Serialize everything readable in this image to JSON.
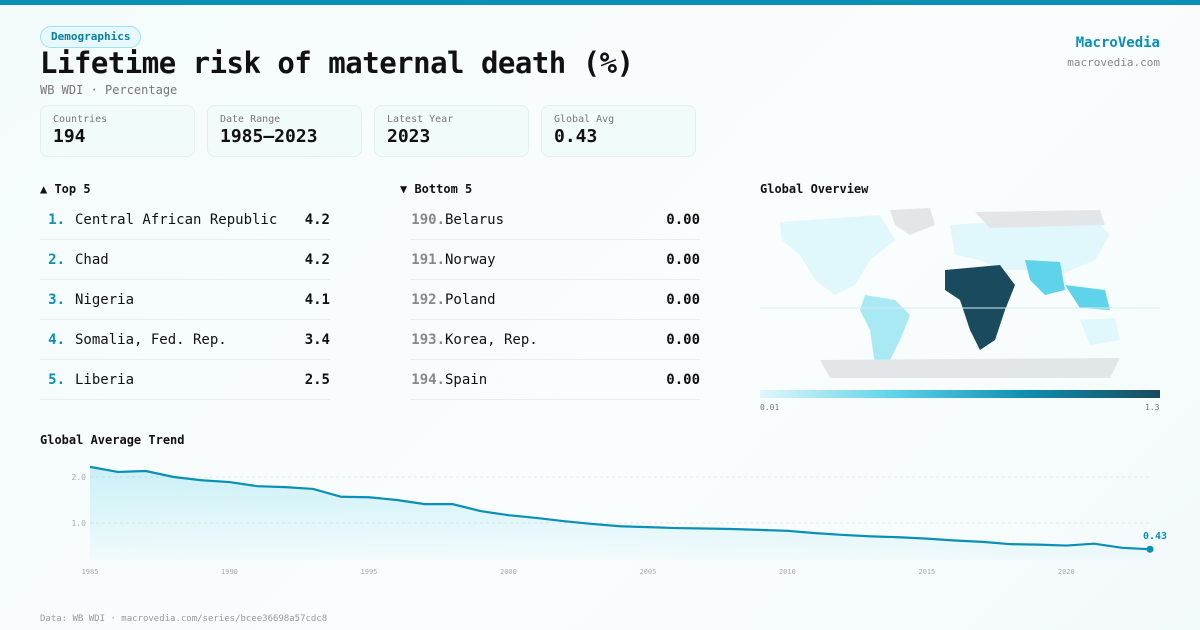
{
  "header": {
    "tag": "Demographics",
    "title": "Lifetime risk of maternal death (%)",
    "subtitle": "WB WDI · Percentage",
    "brand": "MacroVedia",
    "brand_url": "macrovedia.com"
  },
  "stats": [
    {
      "label": "Countries",
      "value": "194"
    },
    {
      "label": "Date Range",
      "value": "1985–2023"
    },
    {
      "label": "Latest Year",
      "value": "2023"
    },
    {
      "label": "Global Avg",
      "value": "0.43"
    }
  ],
  "top5": {
    "title": "▲ Top 5",
    "items": [
      {
        "rank": "1.",
        "name": "Central African Republic",
        "value": "4.2"
      },
      {
        "rank": "2.",
        "name": "Chad",
        "value": "4.2"
      },
      {
        "rank": "3.",
        "name": "Nigeria",
        "value": "4.1"
      },
      {
        "rank": "4.",
        "name": "Somalia, Fed. Rep.",
        "value": "3.4"
      },
      {
        "rank": "5.",
        "name": "Liberia",
        "value": "2.5"
      }
    ]
  },
  "bottom5": {
    "title": "▼ Bottom 5",
    "items": [
      {
        "rank": "190.",
        "name": "Belarus",
        "value": "0.00"
      },
      {
        "rank": "191.",
        "name": "Norway",
        "value": "0.00"
      },
      {
        "rank": "192.",
        "name": "Poland",
        "value": "0.00"
      },
      {
        "rank": "193.",
        "name": "Korea, Rep.",
        "value": "0.00"
      },
      {
        "rank": "194.",
        "name": "Spain",
        "value": "0.00"
      }
    ]
  },
  "map": {
    "title": "Global Overview",
    "legend_min": "0.01",
    "legend_max": "1.3",
    "colors": [
      "#e0f7fb",
      "#5fd3ea",
      "#0e8fb0",
      "#1a4a5e"
    ]
  },
  "footer": "Data: WB WDI · macrovedia.com/series/bcee36698a57cdc8",
  "chart_data": {
    "type": "area",
    "title": "Global Average Trend",
    "x": [
      1985,
      1986,
      1987,
      1988,
      1989,
      1990,
      1991,
      1992,
      1993,
      1994,
      1995,
      1996,
      1997,
      1998,
      1999,
      2000,
      2001,
      2002,
      2003,
      2004,
      2005,
      2006,
      2007,
      2008,
      2009,
      2010,
      2011,
      2012,
      2013,
      2014,
      2015,
      2016,
      2017,
      2018,
      2019,
      2020,
      2021,
      2022,
      2023
    ],
    "values": [
      2.22,
      2.11,
      2.13,
      2.0,
      1.93,
      1.89,
      1.8,
      1.78,
      1.74,
      1.57,
      1.56,
      1.5,
      1.41,
      1.41,
      1.26,
      1.17,
      1.11,
      1.04,
      0.98,
      0.93,
      0.91,
      0.89,
      0.88,
      0.87,
      0.85,
      0.83,
      0.78,
      0.74,
      0.71,
      0.69,
      0.66,
      0.62,
      0.59,
      0.54,
      0.53,
      0.51,
      0.55,
      0.46,
      0.43
    ],
    "yticks": [
      "1.0",
      "2.0"
    ],
    "xticks": [
      "1985",
      "1990",
      "1995",
      "2000",
      "2005",
      "2010",
      "2015",
      "2020"
    ],
    "last_label": "0.43",
    "xlim": [
      1985,
      2023
    ],
    "color": "#0a8fb5"
  }
}
